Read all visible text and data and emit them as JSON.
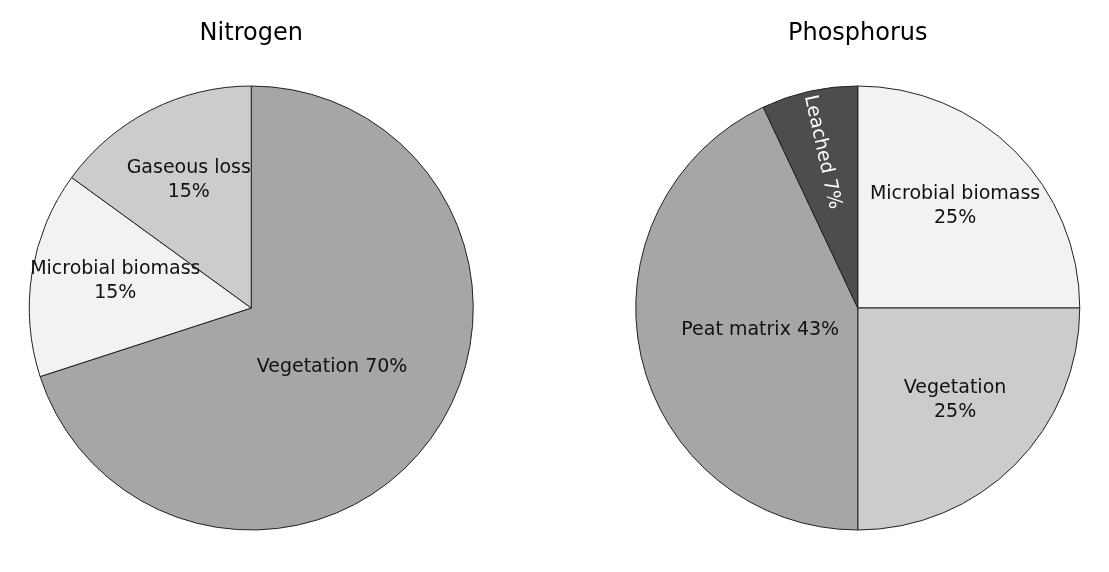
{
  "chart_data": [
    {
      "type": "pie",
      "title": "Nitrogen",
      "categories": [
        "Vegetation",
        "Microbial biomass",
        "Gaseous loss"
      ],
      "values": [
        70,
        15,
        15
      ],
      "value_labels": [
        "70%",
        "15%",
        "15%"
      ],
      "colors": [
        "#a6a6a6",
        "#f2f2f2",
        "#cccccc"
      ]
    },
    {
      "type": "pie",
      "title": "Phosphorus",
      "categories": [
        "Microbial biomass",
        "Vegetation",
        "Peat matrix",
        "Leached"
      ],
      "values": [
        25,
        25,
        43,
        7
      ],
      "value_labels": [
        "25%",
        "25%",
        "43%",
        "7%"
      ],
      "colors": [
        "#f2f2f2",
        "#cccccc",
        "#a6a6a6",
        "#4d4d4d"
      ]
    }
  ]
}
